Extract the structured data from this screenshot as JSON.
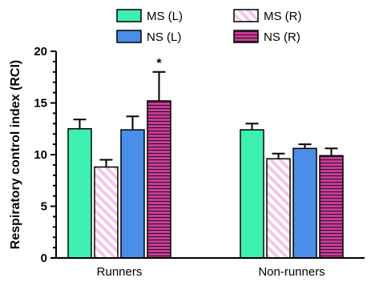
{
  "chart_data": {
    "type": "bar",
    "title": "",
    "xlabel": "",
    "ylabel": "Respiratory control index (RCI)",
    "ylim": [
      0,
      20
    ],
    "yticks": [
      0,
      5,
      10,
      15,
      20
    ],
    "minor_tick_step": 1,
    "categories": [
      "Runners",
      "Non-runners"
    ],
    "series": [
      {
        "name": "MS (L)",
        "color": "#3df0b0",
        "pattern": "solid",
        "values": [
          12.5,
          12.4
        ],
        "errors": [
          0.9,
          0.6
        ]
      },
      {
        "name": "MS (R)",
        "color": "#f3c6ea",
        "pattern": "diagonal-stripes",
        "values": [
          8.8,
          9.6
        ],
        "errors": [
          0.7,
          0.5
        ]
      },
      {
        "name": "NS (L)",
        "color": "#4a8ee8",
        "pattern": "solid",
        "values": [
          12.4,
          10.6
        ],
        "errors": [
          1.3,
          0.4
        ]
      },
      {
        "name": "NS (R)",
        "color": "#cc3a9a",
        "pattern": "horizontal-stripes",
        "values": [
          15.2,
          9.9
        ],
        "errors": [
          2.8,
          0.7
        ]
      }
    ],
    "annotations": [
      {
        "text": "*",
        "category": "Runners",
        "series": "NS (R)"
      }
    ],
    "legend_position": "top"
  }
}
